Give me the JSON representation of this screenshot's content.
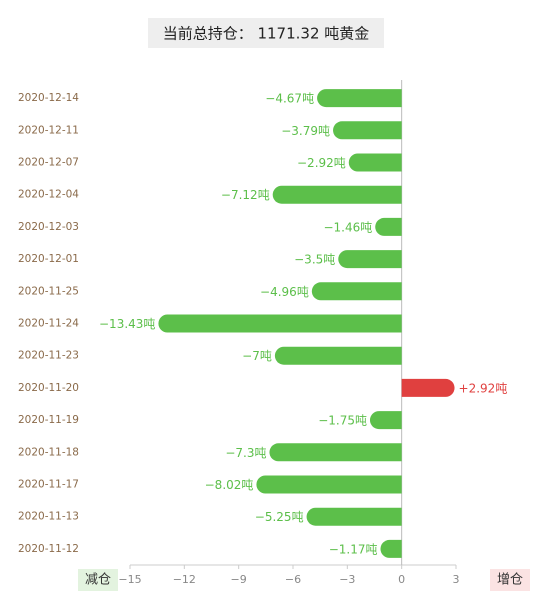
{
  "chart_data": {
    "type": "hbar",
    "title": "当前总持仓： 1171.32 吨黄金",
    "categories": [
      "2020-12-14",
      "2020-12-11",
      "2020-12-07",
      "2020-12-04",
      "2020-12-03",
      "2020-12-01",
      "2020-11-25",
      "2020-11-24",
      "2020-11-23",
      "2020-11-20",
      "2020-11-19",
      "2020-11-18",
      "2020-11-17",
      "2020-11-13",
      "2020-11-12"
    ],
    "values": [
      -4.67,
      -3.79,
      -2.92,
      -7.12,
      -1.46,
      -3.5,
      -4.96,
      -13.43,
      -7,
      2.92,
      -1.75,
      -7.3,
      -8.02,
      -5.25,
      -1.17
    ],
    "value_labels": [
      "−4.67吨",
      "−3.79吨",
      "−2.92吨",
      "−7.12吨",
      "−1.46吨",
      "−3.5吨",
      "−4.96吨",
      "−13.43吨",
      "−7吨",
      "+2.92吨",
      "−1.75吨",
      "−7.3吨",
      "−8.02吨",
      "−5.25吨",
      "−1.17吨"
    ],
    "negative_color": "#5cbf4a",
    "positive_color": "#e0403f",
    "xlim": [
      -15,
      3
    ],
    "xticks": [
      {
        "value": -15,
        "label": "−15"
      },
      {
        "value": -12,
        "label": "−12"
      },
      {
        "value": -9,
        "label": "−9"
      },
      {
        "value": -6,
        "label": "−6"
      },
      {
        "value": -3,
        "label": "−3"
      },
      0,
      3
    ],
    "negative_label": "减仓",
    "positive_label": "增仓"
  }
}
